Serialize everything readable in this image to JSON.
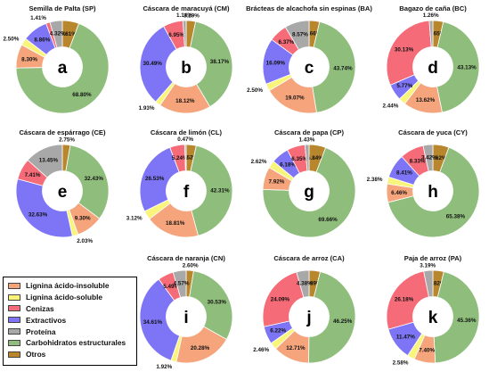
{
  "colors": {
    "lignina_insoluble": "#f5a47c",
    "lignina_soluble": "#f8f57a",
    "cenizas": "#f56b78",
    "extractivos": "#7d75f5",
    "proteina": "#a8a8a8",
    "carbohidratos": "#8fbe7c",
    "otros": "#b8862c"
  },
  "legend": {
    "items": [
      {
        "label": "Lignina ácido-insoluble",
        "color_key": "lignina_insoluble"
      },
      {
        "label": "Lignina ácido-soluble",
        "color_key": "lignina_soluble"
      },
      {
        "label": "Cenizas",
        "color_key": "cenizas"
      },
      {
        "label": "Extractivos",
        "color_key": "extractivos"
      },
      {
        "label": "Proteína",
        "color_key": "proteina"
      },
      {
        "label": "Carbohidratos estructurales",
        "color_key": "carbohidratos"
      },
      {
        "label": "Otros",
        "color_key": "otros"
      }
    ]
  },
  "chart_data": [
    {
      "type": "pie",
      "title": "Semilla de Palta (SP)",
      "center_label": "a",
      "slices": [
        {
          "category": "Otros",
          "value": 5.81
        },
        {
          "category": "Carbohidratos estructurales",
          "value": 68.8
        },
        {
          "category": "Lignina ácido-insoluble",
          "value": 8.3
        },
        {
          "category": "Lignina ácido-soluble",
          "value": 2.5
        },
        {
          "category": "Extractivos",
          "value": 8.86
        },
        {
          "category": "Cenizas",
          "value": 1.41
        },
        {
          "category": "Proteína",
          "value": 4.32
        }
      ]
    },
    {
      "type": "pie",
      "title": "Cáscara de maracuyá (CM)",
      "center_label": "b",
      "slices": [
        {
          "category": "Otros",
          "value": 3.29
        },
        {
          "category": "Carbohidratos estructurales",
          "value": 38.17
        },
        {
          "category": "Lignina ácido-insoluble",
          "value": 18.12
        },
        {
          "category": "Lignina ácido-soluble",
          "value": 1.93
        },
        {
          "category": "Extractivos",
          "value": 30.49
        },
        {
          "category": "Cenizas",
          "value": 6.95
        },
        {
          "category": "Proteína",
          "value": 1.14
        }
      ]
    },
    {
      "type": "pie",
      "title": "Brácteas de alcachofa sin espinas (BA)",
      "center_label": "c",
      "slices": [
        {
          "category": "Otros",
          "value": 3.66
        },
        {
          "category": "Carbohidratos estructurales",
          "value": 43.74
        },
        {
          "category": "Lignina ácido-insoluble",
          "value": 19.07
        },
        {
          "category": "Lignina ácido-soluble",
          "value": 2.5
        },
        {
          "category": "Extractivos",
          "value": 16.09
        },
        {
          "category": "Cenizas",
          "value": 6.37
        },
        {
          "category": "Proteína",
          "value": 8.57
        }
      ]
    },
    {
      "type": "pie",
      "title": "Bagazo de caña (BC)",
      "center_label": "d",
      "slices": [
        {
          "category": "Otros",
          "value": 3.65
        },
        {
          "category": "Carbohidratos estructurales",
          "value": 43.13
        },
        {
          "category": "Lignina ácido-insoluble",
          "value": 13.62
        },
        {
          "category": "Lignina ácido-soluble",
          "value": 2.44
        },
        {
          "category": "Extractivos",
          "value": 5.77
        },
        {
          "category": "Cenizas",
          "value": 30.13
        },
        {
          "category": "Proteína",
          "value": 1.26
        }
      ]
    },
    {
      "type": "pie",
      "title": "Cáscara de espárrago (CE)",
      "center_label": "e",
      "slices": [
        {
          "category": "Otros",
          "value": 2.75
        },
        {
          "category": "Carbohidratos estructurales",
          "value": 32.43
        },
        {
          "category": "Lignina ácido-insoluble",
          "value": 9.3
        },
        {
          "category": "Lignina ácido-soluble",
          "value": 2.03
        },
        {
          "category": "Extractivos",
          "value": 32.63
        },
        {
          "category": "Cenizas",
          "value": 7.41
        },
        {
          "category": "Proteína",
          "value": 13.45
        }
      ]
    },
    {
      "type": "pie",
      "title": "Cáscara de limón (CL)",
      "center_label": "f",
      "slices": [
        {
          "category": "Otros",
          "value": 3.52
        },
        {
          "category": "Carbohidratos estructurales",
          "value": 42.31
        },
        {
          "category": "Lignina ácido-insoluble",
          "value": 18.81
        },
        {
          "category": "Lignina ácido-soluble",
          "value": 3.12
        },
        {
          "category": "Extractivos",
          "value": 26.53
        },
        {
          "category": "Cenizas",
          "value": 5.24
        },
        {
          "category": "Proteína",
          "value": 0.47
        }
      ]
    },
    {
      "type": "pie",
      "title": "Cáscara de papa (CP)",
      "center_label": "g",
      "slices": [
        {
          "category": "Otros",
          "value": 5.84
        },
        {
          "category": "Carbohidratos estructurales",
          "value": 69.66
        },
        {
          "category": "Lignina ácido-insoluble",
          "value": 7.92
        },
        {
          "category": "Lignina ácido-soluble",
          "value": 2.62
        },
        {
          "category": "Extractivos",
          "value": 6.18
        },
        {
          "category": "Cenizas",
          "value": 6.35
        },
        {
          "category": "Proteína",
          "value": 1.43
        }
      ]
    },
    {
      "type": "pie",
      "title": "Cáscara de yuca (CY)",
      "center_label": "h",
      "slices": [
        {
          "category": "Otros",
          "value": 5.62
        },
        {
          "category": "Carbohidratos estructurales",
          "value": 65.38
        },
        {
          "category": "Lignina ácido-insoluble",
          "value": 6.46
        },
        {
          "category": "Lignina ácido-soluble",
          "value": 2.38
        },
        {
          "category": "Extractivos",
          "value": 8.41
        },
        {
          "category": "Cenizas",
          "value": 8.33
        },
        {
          "category": "Proteína",
          "value": 3.42
        }
      ]
    },
    {
      "type": "pie",
      "title": "Cáscara de naranja (CN)",
      "center_label": "i",
      "slices": [
        {
          "category": "Otros",
          "value": 2.6
        },
        {
          "category": "Carbohidratos estructurales",
          "value": 30.53
        },
        {
          "category": "Lignina ácido-insoluble",
          "value": 20.28
        },
        {
          "category": "Lignina ácido-soluble",
          "value": 1.92
        },
        {
          "category": "Extractivos",
          "value": 34.61
        },
        {
          "category": "Cenizas",
          "value": 5.49
        },
        {
          "category": "Proteína",
          "value": 4.57
        }
      ]
    },
    {
      "type": "pie",
      "title": "Cáscara de arroz (CA)",
      "center_label": "j",
      "slices": [
        {
          "category": "Otros",
          "value": 3.89
        },
        {
          "category": "Carbohidratos estructurales",
          "value": 46.25
        },
        {
          "category": "Lignina ácido-insoluble",
          "value": 12.71
        },
        {
          "category": "Lignina ácido-soluble",
          "value": 2.46
        },
        {
          "category": "Extractivos",
          "value": 6.22
        },
        {
          "category": "Cenizas",
          "value": 24.09
        },
        {
          "category": "Proteína",
          "value": 4.38
        }
      ]
    },
    {
      "type": "pie",
      "title": "Paja de arroz (PA)",
      "center_label": "k",
      "slices": [
        {
          "category": "Otros",
          "value": 3.82
        },
        {
          "category": "Carbohidratos estructurales",
          "value": 45.36
        },
        {
          "category": "Lignina ácido-insoluble",
          "value": 7.4
        },
        {
          "category": "Lignina ácido-soluble",
          "value": 2.58
        },
        {
          "category": "Extractivos",
          "value": 11.47
        },
        {
          "category": "Cenizas",
          "value": 26.18
        },
        {
          "category": "Proteína",
          "value": 3.19
        }
      ]
    }
  ]
}
